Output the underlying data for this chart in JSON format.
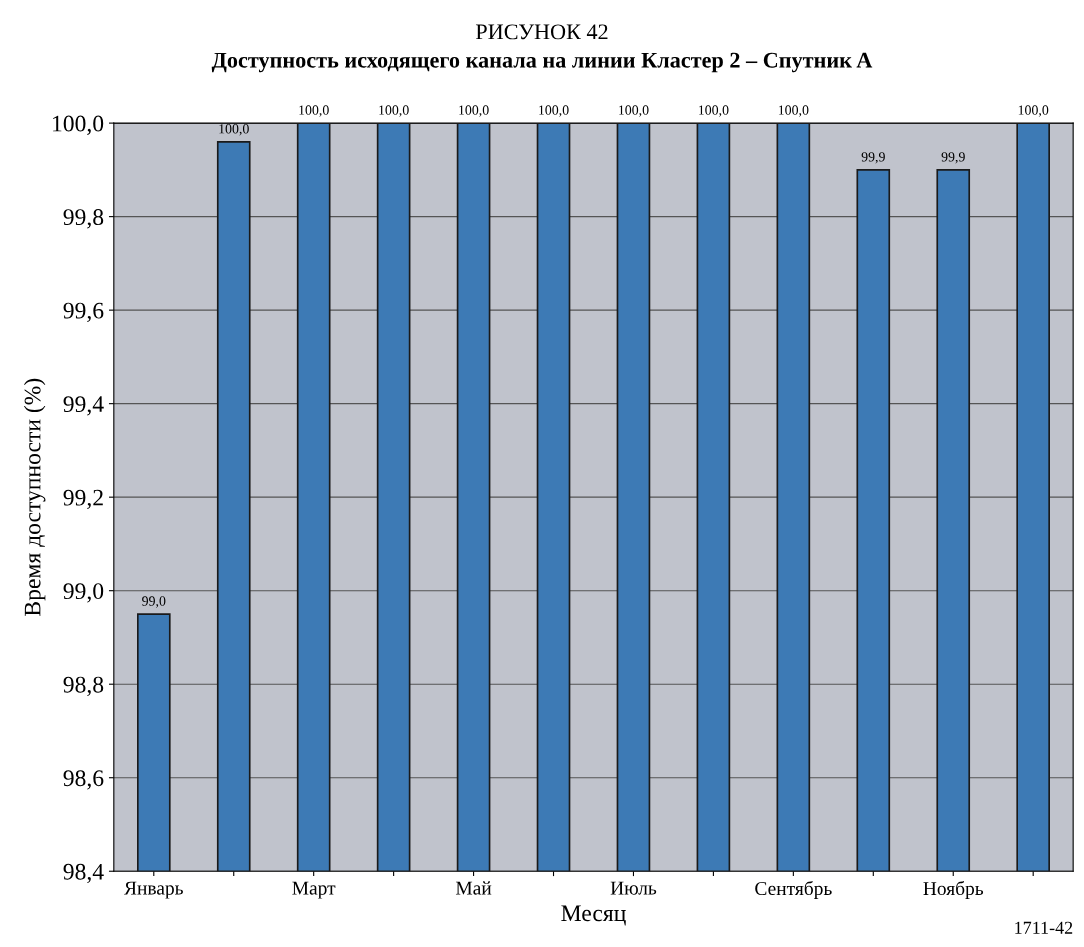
{
  "chart_data": {
    "type": "bar",
    "title": "РИСУНОК 42",
    "subtitle": "Доступность исходящего канала на линии Кластер 2 – Спутник A",
    "xlabel": "Месяц",
    "ylabel": "Время доступности (%)",
    "categories": [
      "Январь",
      null,
      "Март",
      null,
      "Май",
      null,
      "Июль",
      null,
      "Сентябрь",
      null,
      "Ноябрь",
      null
    ],
    "values": [
      98.95,
      99.96,
      100.0,
      100.0,
      100.0,
      100.0,
      100.0,
      100.0,
      100.0,
      99.9,
      99.9,
      100.0
    ],
    "value_labels": [
      "99,0",
      "100,0",
      "100,0",
      "100,0",
      "100,0",
      "100,0",
      "100,0",
      "100,0",
      "100,0",
      "99,9",
      "99,9",
      "100,0"
    ],
    "color": "#3d7ab5",
    "ylim": [
      98.4,
      100.0
    ],
    "yticks": [
      {
        "value": 98.4,
        "label": "98,4"
      },
      {
        "value": 98.6,
        "label": "98,6"
      },
      {
        "value": 98.8,
        "label": "98,8"
      },
      {
        "value": 99.0,
        "label": "99,0"
      },
      {
        "value": 99.2,
        "label": "99,2"
      },
      {
        "value": 99.4,
        "label": "99,4"
      },
      {
        "value": 99.6,
        "label": "99,6"
      },
      {
        "value": 99.8,
        "label": "99,8"
      },
      {
        "value": 100.0,
        "label": "100,0"
      }
    ],
    "grid": "y",
    "legend": false,
    "annotations": [
      "1711-42"
    ]
  }
}
